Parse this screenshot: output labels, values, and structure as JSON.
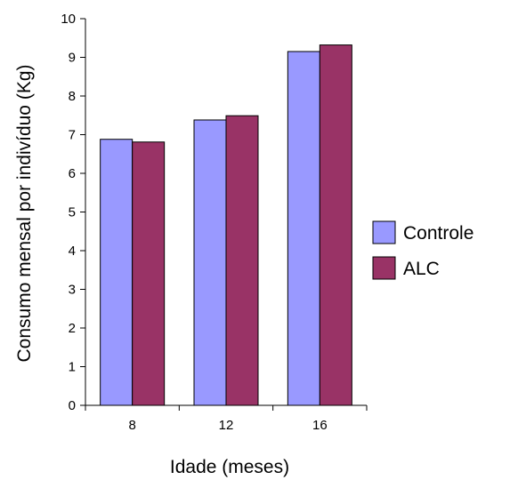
{
  "chart_data": {
    "type": "bar",
    "categories": [
      "8",
      "12",
      "16"
    ],
    "series": [
      {
        "name": "Controle",
        "values": [
          6.88,
          7.38,
          9.15
        ],
        "color": "#9999ff"
      },
      {
        "name": "ALC",
        "values": [
          6.81,
          7.49,
          9.32
        ],
        "color": "#993366"
      }
    ],
    "xlabel": "Idade (meses)",
    "ylabel": "Consumo mensal por indivíduo (Kg)",
    "ylim": [
      0,
      10
    ],
    "yticks": [
      "0",
      "1",
      "2",
      "3",
      "4",
      "5",
      "6",
      "7",
      "8",
      "9",
      "10"
    ],
    "grid": false,
    "legend_position": "right"
  }
}
